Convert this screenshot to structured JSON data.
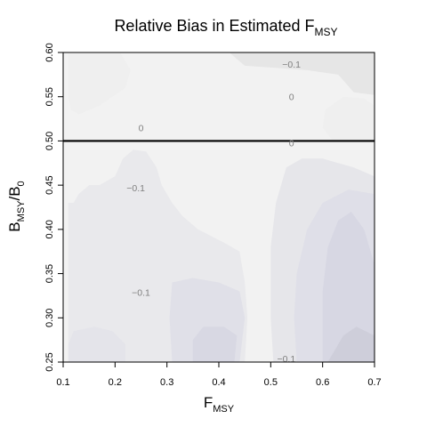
{
  "chart_data": {
    "type": "heatmap",
    "title": {
      "main": "Relative Bias in Estimated F",
      "sub": "MSY"
    },
    "xlabel": {
      "main": "F",
      "sub": "MSY"
    },
    "ylabel": {
      "main": "B",
      "sub1": "MSY",
      "sep": "/B",
      "sub2": "0"
    },
    "xlim": [
      0.1,
      0.7
    ],
    "ylim": [
      0.25,
      0.6
    ],
    "x_ticks": [
      {
        "value": 0.1,
        "label": "0.1"
      },
      {
        "value": 0.2,
        "label": "0.2"
      },
      {
        "value": 0.3,
        "label": "0.3"
      },
      {
        "value": 0.4,
        "label": "0.4"
      },
      {
        "value": 0.5,
        "label": "0.5"
      },
      {
        "value": 0.6,
        "label": "0.6"
      },
      {
        "value": 0.7,
        "label": "0.7"
      }
    ],
    "y_ticks": [
      {
        "value": 0.25,
        "label": "0.25"
      },
      {
        "value": 0.3,
        "label": "0.30"
      },
      {
        "value": 0.35,
        "label": "0.35"
      },
      {
        "value": 0.4,
        "label": "0.40"
      },
      {
        "value": 0.45,
        "label": "0.45"
      },
      {
        "value": 0.5,
        "label": "0.50"
      },
      {
        "value": 0.55,
        "label": "0.55"
      },
      {
        "value": 0.6,
        "label": "0.60"
      }
    ],
    "reference_line": {
      "y": 0.5,
      "color": "#000000"
    },
    "contour_labels": [
      {
        "x": 0.54,
        "y": 0.587,
        "text": "−0.1"
      },
      {
        "x": 0.54,
        "y": 0.55,
        "text": "0"
      },
      {
        "x": 0.25,
        "y": 0.515,
        "text": "0"
      },
      {
        "x": 0.54,
        "y": 0.498,
        "text": "0"
      },
      {
        "x": 0.24,
        "y": 0.447,
        "text": "−0.1"
      },
      {
        "x": 0.25,
        "y": 0.329,
        "text": "−0.1"
      },
      {
        "x": 0.53,
        "y": 0.254,
        "text": "−0.1"
      }
    ],
    "regions": [
      {
        "name": "upper-left-lobe",
        "value": -0.03,
        "color": "#efefef",
        "points": [
          [
            0.11,
            0.6
          ],
          [
            0.21,
            0.6
          ],
          [
            0.23,
            0.58
          ],
          [
            0.22,
            0.56
          ],
          [
            0.17,
            0.54
          ],
          [
            0.13,
            0.53
          ],
          [
            0.115,
            0.535
          ],
          [
            0.11,
            0.55
          ]
        ]
      },
      {
        "name": "upper-mid-lobe",
        "value": -0.03,
        "color": "#f2f2f2",
        "points": [
          [
            0.265,
            0.6
          ],
          [
            0.3,
            0.6
          ],
          [
            0.32,
            0.57
          ],
          [
            0.37,
            0.545
          ],
          [
            0.41,
            0.54
          ],
          [
            0.45,
            0.54
          ],
          [
            0.46,
            0.52
          ],
          [
            0.465,
            0.5
          ],
          [
            0.44,
            0.49
          ],
          [
            0.4,
            0.5
          ],
          [
            0.36,
            0.5
          ],
          [
            0.33,
            0.53
          ],
          [
            0.28,
            0.55
          ],
          [
            0.255,
            0.57
          ]
        ]
      },
      {
        "name": "upper-right-band",
        "value": -0.06,
        "color": "#e6e6e6",
        "points": [
          [
            0.42,
            0.6
          ],
          [
            0.7,
            0.6
          ],
          [
            0.7,
            0.552
          ],
          [
            0.66,
            0.555
          ],
          [
            0.63,
            0.575
          ],
          [
            0.57,
            0.58
          ],
          [
            0.5,
            0.583
          ],
          [
            0.45,
            0.585
          ]
        ]
      },
      {
        "name": "upper-right-lobe",
        "value": -0.03,
        "color": "#efefef",
        "points": [
          [
            0.62,
            0.5
          ],
          [
            0.7,
            0.5
          ],
          [
            0.7,
            0.54
          ],
          [
            0.68,
            0.548
          ],
          [
            0.64,
            0.55
          ],
          [
            0.605,
            0.535
          ],
          [
            0.6,
            0.515
          ]
        ]
      },
      {
        "name": "lower-left-region",
        "value": -0.06,
        "color": "#e9e9ec",
        "points": [
          [
            0.11,
            0.25
          ],
          [
            0.45,
            0.25
          ],
          [
            0.455,
            0.3
          ],
          [
            0.45,
            0.34
          ],
          [
            0.44,
            0.375
          ],
          [
            0.41,
            0.385
          ],
          [
            0.36,
            0.4
          ],
          [
            0.33,
            0.415
          ],
          [
            0.31,
            0.43
          ],
          [
            0.29,
            0.45
          ],
          [
            0.28,
            0.47
          ],
          [
            0.26,
            0.488
          ],
          [
            0.235,
            0.49
          ],
          [
            0.215,
            0.48
          ],
          [
            0.2,
            0.46
          ],
          [
            0.17,
            0.45
          ],
          [
            0.15,
            0.45
          ],
          [
            0.13,
            0.44
          ],
          [
            0.12,
            0.43
          ],
          [
            0.11,
            0.43
          ]
        ]
      },
      {
        "name": "lower-left-inner-a",
        "value": -0.1,
        "color": "#e4e4ea",
        "points": [
          [
            0.11,
            0.25
          ],
          [
            0.22,
            0.25
          ],
          [
            0.22,
            0.27
          ],
          [
            0.195,
            0.285
          ],
          [
            0.16,
            0.29
          ],
          [
            0.12,
            0.285
          ],
          [
            0.11,
            0.27
          ]
        ]
      },
      {
        "name": "lower-left-inner-b",
        "value": -0.1,
        "color": "#e0e0e8",
        "points": [
          [
            0.31,
            0.25
          ],
          [
            0.44,
            0.25
          ],
          [
            0.45,
            0.3
          ],
          [
            0.44,
            0.33
          ],
          [
            0.4,
            0.34
          ],
          [
            0.35,
            0.345
          ],
          [
            0.31,
            0.34
          ],
          [
            0.305,
            0.3
          ]
        ]
      },
      {
        "name": "lower-left-inner-c",
        "value": -0.14,
        "color": "#d8d8e3",
        "points": [
          [
            0.35,
            0.25
          ],
          [
            0.43,
            0.25
          ],
          [
            0.435,
            0.28
          ],
          [
            0.41,
            0.29
          ],
          [
            0.37,
            0.29
          ],
          [
            0.35,
            0.275
          ]
        ]
      },
      {
        "name": "lower-right-region",
        "value": -0.06,
        "color": "#e6e6ea",
        "points": [
          [
            0.505,
            0.25
          ],
          [
            0.7,
            0.25
          ],
          [
            0.7,
            0.46
          ],
          [
            0.66,
            0.47
          ],
          [
            0.6,
            0.48
          ],
          [
            0.56,
            0.48
          ],
          [
            0.53,
            0.47
          ],
          [
            0.51,
            0.43
          ],
          [
            0.5,
            0.38
          ],
          [
            0.5,
            0.3
          ]
        ]
      },
      {
        "name": "lower-right-inner-a",
        "value": -0.1,
        "color": "#dfdfe8",
        "points": [
          [
            0.55,
            0.25
          ],
          [
            0.7,
            0.25
          ],
          [
            0.7,
            0.44
          ],
          [
            0.65,
            0.445
          ],
          [
            0.6,
            0.43
          ],
          [
            0.57,
            0.4
          ],
          [
            0.55,
            0.35
          ],
          [
            0.545,
            0.3
          ]
        ]
      },
      {
        "name": "lower-right-inner-b",
        "value": -0.14,
        "color": "#d7d7e3",
        "points": [
          [
            0.6,
            0.25
          ],
          [
            0.7,
            0.25
          ],
          [
            0.7,
            0.36
          ],
          [
            0.68,
            0.4
          ],
          [
            0.655,
            0.42
          ],
          [
            0.63,
            0.41
          ],
          [
            0.61,
            0.38
          ],
          [
            0.6,
            0.33
          ]
        ]
      },
      {
        "name": "lower-right-inner-c",
        "value": -0.18,
        "color": "#ceceda",
        "points": [
          [
            0.61,
            0.25
          ],
          [
            0.7,
            0.25
          ],
          [
            0.7,
            0.28
          ],
          [
            0.665,
            0.29
          ],
          [
            0.64,
            0.28
          ]
        ]
      }
    ]
  }
}
